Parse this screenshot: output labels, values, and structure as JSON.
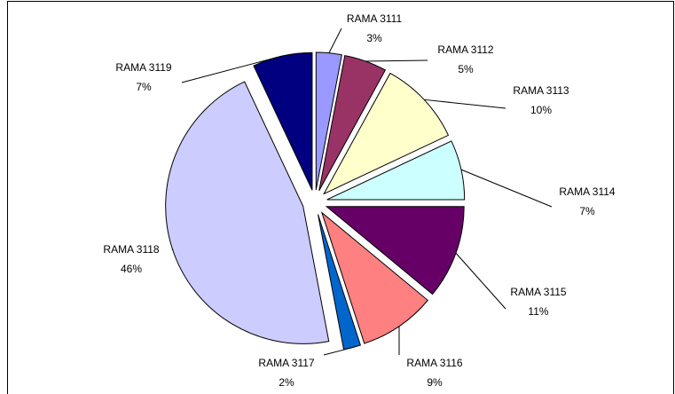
{
  "chart_data": {
    "type": "pie",
    "categories": [
      "RAMA 3111",
      "RAMA 3112",
      "RAMA 3113",
      "RAMA 3114",
      "RAMA 3115",
      "RAMA 3116",
      "RAMA 3117",
      "RAMA 3118",
      "RAMA 3119"
    ],
    "values": [
      3,
      5,
      10,
      7,
      11,
      9,
      2,
      46,
      7
    ],
    "value_labels": [
      "3%",
      "5%",
      "10%",
      "7%",
      "11%",
      "9%",
      "2%",
      "46%",
      "7%"
    ],
    "colors": [
      "#9999ff",
      "#993366",
      "#ffffcc",
      "#ccffff",
      "#660066",
      "#ff8080",
      "#0066cc",
      "#ccccff",
      "#000080"
    ]
  }
}
